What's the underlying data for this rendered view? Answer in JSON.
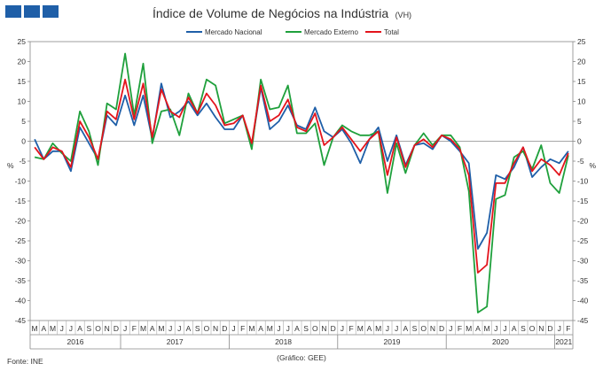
{
  "header": {
    "logo_icon": "ine-logo-squares",
    "logo_color": "#1f5fa8"
  },
  "footer": {
    "source": "Fonte: INE",
    "credit": "(Gráfico: GEE)"
  },
  "chart_data": {
    "type": "line",
    "title": "Índice de Volume de Negócios na Indústria",
    "subtitle": "(VH)",
    "ylabel": "%",
    "ylim": [
      -45,
      25
    ],
    "ytick_step": 5,
    "grid": false,
    "legend": "top",
    "months": [
      "M",
      "A",
      "M",
      "J",
      "J",
      "A",
      "S",
      "O",
      "N",
      "D",
      "J",
      "F",
      "M",
      "A",
      "M",
      "J",
      "J",
      "A",
      "S",
      "O",
      "N",
      "D",
      "J",
      "F",
      "M",
      "A",
      "M",
      "J",
      "J",
      "A",
      "S",
      "O",
      "N",
      "D",
      "J",
      "F",
      "M",
      "A",
      "M",
      "J",
      "J",
      "A",
      "S",
      "O",
      "N",
      "D",
      "J",
      "F",
      "M",
      "A",
      "M",
      "J",
      "J",
      "A",
      "S",
      "O",
      "N",
      "D",
      "J",
      "F"
    ],
    "years": [
      {
        "label": "2016",
        "start": 0,
        "end": 9
      },
      {
        "label": "2017",
        "start": 10,
        "end": 21
      },
      {
        "label": "2018",
        "start": 22,
        "end": 33
      },
      {
        "label": "2019",
        "start": 34,
        "end": 45
      },
      {
        "label": "2020",
        "start": 46,
        "end": 57
      },
      {
        "label": "2021",
        "start": 58,
        "end": 59
      }
    ],
    "series": [
      {
        "name": "Mercado Nacional",
        "color": "#1f5fa8",
        "values": [
          0.5,
          -4.5,
          -2.5,
          -2.5,
          -7.5,
          3.5,
          -0.5,
          -4.5,
          6.5,
          4.0,
          11.5,
          4.0,
          11.5,
          0.5,
          14.5,
          6.0,
          7.5,
          10.0,
          6.5,
          9.5,
          6.0,
          3.0,
          3.0,
          6.5,
          -1.0,
          13.5,
          3.0,
          5.0,
          9.0,
          4.0,
          3.0,
          8.5,
          2.5,
          1.0,
          3.0,
          -0.5,
          -5.5,
          0.5,
          3.5,
          -5.0,
          1.5,
          -6.0,
          -1.0,
          -0.5,
          -2.0,
          1.5,
          0.0,
          -2.5,
          -5.5,
          -27.0,
          -23.0,
          -8.5,
          -9.5,
          -6.5,
          -1.5,
          -9.0,
          -6.5,
          -4.5,
          -5.5,
          -2.5
        ]
      },
      {
        "name": "Mercado Externo",
        "color": "#1fa03c",
        "values": [
          -4.0,
          -4.5,
          -0.5,
          -3.0,
          -5.0,
          7.5,
          2.5,
          -6.0,
          9.5,
          8.0,
          22.0,
          6.5,
          19.5,
          -0.5,
          7.5,
          8.0,
          1.5,
          12.0,
          7.0,
          15.5,
          14.0,
          4.5,
          5.5,
          6.5,
          -2.0,
          15.5,
          8.0,
          8.5,
          14.0,
          2.0,
          2.0,
          4.5,
          -6.0,
          1.0,
          4.0,
          2.5,
          1.5,
          1.5,
          2.5,
          -13.0,
          -0.5,
          -8.0,
          -1.0,
          2.0,
          -1.0,
          1.5,
          1.5,
          -1.5,
          -12.5,
          -43.0,
          -41.5,
          -14.5,
          -13.5,
          -4.0,
          -2.5,
          -7.0,
          -1.0,
          -10.5,
          -13.0,
          -3.5
        ]
      },
      {
        "name": "Total",
        "color": "#e3141c",
        "values": [
          -1.5,
          -4.5,
          -1.5,
          -2.5,
          -6.5,
          5.0,
          1.0,
          -4.5,
          7.5,
          5.5,
          15.5,
          5.5,
          14.5,
          1.0,
          13.0,
          7.5,
          6.0,
          11.0,
          7.0,
          12.0,
          9.0,
          4.0,
          4.5,
          6.5,
          -0.5,
          14.0,
          5.0,
          6.5,
          10.5,
          3.5,
          2.5,
          7.0,
          -1.0,
          1.0,
          3.5,
          0.5,
          -2.5,
          0.5,
          2.5,
          -8.5,
          1.0,
          -6.5,
          -1.0,
          0.5,
          -1.5,
          1.5,
          0.5,
          -2.0,
          -8.5,
          -33.0,
          -31.0,
          -10.5,
          -10.5,
          -5.5,
          -1.5,
          -7.5,
          -4.5,
          -6.0,
          -8.5,
          -3.0
        ]
      }
    ]
  }
}
